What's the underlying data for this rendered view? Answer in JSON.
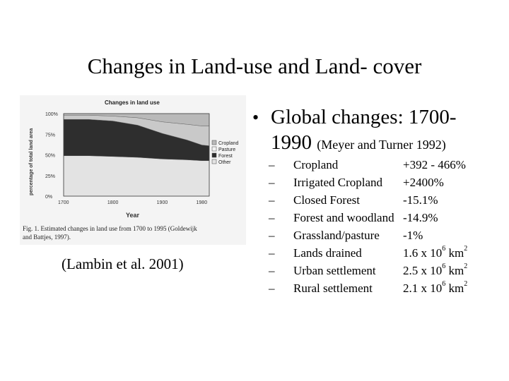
{
  "slide": {
    "title": "Changes in Land-use and Land- cover",
    "credit": "(Lambin et al. 2001)"
  },
  "figure": {
    "chart_title": "Changes in land use",
    "ylabel": "percentage of total land area",
    "xlabel": "Year",
    "yticks": [
      "100%",
      "75%",
      "50%",
      "25%",
      "0%"
    ],
    "xticks": [
      "1700",
      "1800",
      "1900",
      "1980"
    ],
    "legend": [
      "Cropland",
      "Pasture",
      "Forest",
      "Other"
    ],
    "caption_line1": "Fig. 1. Estimated changes in land use from 1700 to 1995 (Goldewijk",
    "caption_line2": "and Battjes, 1997)."
  },
  "bullet": {
    "dot": "•",
    "line1": "Global changes: 1700-",
    "line2_year": "1990",
    "line2_source": "(Meyer and Turner 1992)"
  },
  "items": [
    {
      "dash": "–",
      "label": "Cropland",
      "value": "+392 - 466%"
    },
    {
      "dash": "–",
      "label": "Irrigated Cropland",
      "value": "+2400%"
    },
    {
      "dash": "–",
      "label": "Closed Forest",
      "value": "-15.1%"
    },
    {
      "dash": "–",
      "label": "Forest and woodland",
      "value": "-14.9%"
    },
    {
      "dash": "–",
      "label": "Grassland/pasture",
      "value": "-1%"
    },
    {
      "dash": "–",
      "label": "Lands drained",
      "value": "1.6 x 10",
      "exp": "6",
      "unit": "km",
      "unit_exp": "2"
    },
    {
      "dash": "–",
      "label": "Urban settlement",
      "value": "2.5 x 10",
      "exp": "6",
      "unit": "km",
      "unit_exp": "2"
    },
    {
      "dash": "–",
      "label": "Rural settlement",
      "value": "2.1 x 10",
      "exp": "6",
      "unit": "km",
      "unit_exp": "2"
    }
  ],
  "chart_data": {
    "type": "area",
    "title": "Changes in land use",
    "xlabel": "Year",
    "ylabel": "percentage of total land area",
    "x": [
      1700,
      1750,
      1800,
      1850,
      1900,
      1950,
      1980,
      1995
    ],
    "series": [
      {
        "name": "Other",
        "values": [
          49,
          49,
          48,
          47,
          45,
          44,
          43,
          43
        ]
      },
      {
        "name": "Forest",
        "values": [
          44,
          44,
          43,
          39,
          31,
          24,
          19,
          18
        ]
      },
      {
        "name": "Pasture",
        "values": [
          5,
          5,
          6,
          9,
          14,
          19,
          23,
          24
        ]
      },
      {
        "name": "Cropland",
        "values": [
          2,
          2,
          3,
          5,
          10,
          13,
          15,
          15
        ]
      }
    ],
    "ylim": [
      0,
      100
    ],
    "legend_position": "right",
    "colors": {
      "Other": "#e3e3e3",
      "Forest": "#2e2e2e",
      "Pasture": "#c9c9c9",
      "Cropland": "#b9b9b9"
    }
  }
}
